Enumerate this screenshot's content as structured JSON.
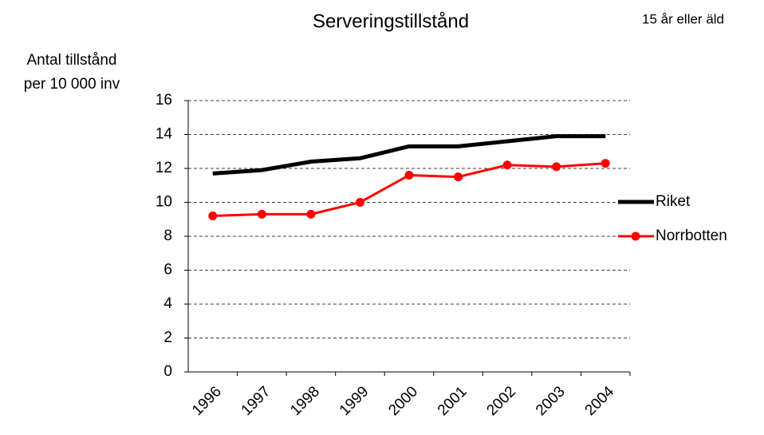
{
  "chart_data": {
    "type": "line",
    "title": "Serveringstillstånd",
    "subtitle": "15 år eller äld",
    "y_label": [
      "Antal tillstånd",
      "per 10 000 inv"
    ],
    "categories": [
      "1996",
      "1997",
      "1998",
      "1999",
      "2000",
      "2001",
      "2002",
      "2003",
      "2004"
    ],
    "series": [
      {
        "name": "Riket",
        "color": "#000000",
        "marker": false,
        "values": [
          11.7,
          11.9,
          12.4,
          12.6,
          13.3,
          13.3,
          13.6,
          13.9,
          13.9
        ]
      },
      {
        "name": "Norrbotten",
        "color": "#ff0000",
        "marker": true,
        "values": [
          9.2,
          9.3,
          9.3,
          10.0,
          11.6,
          11.5,
          12.2,
          12.1,
          12.3
        ]
      }
    ],
    "ylim": [
      0,
      16
    ],
    "yticks": [
      0,
      2,
      4,
      6,
      8,
      10,
      12,
      14,
      16
    ],
    "grid": true,
    "legend": "right"
  }
}
